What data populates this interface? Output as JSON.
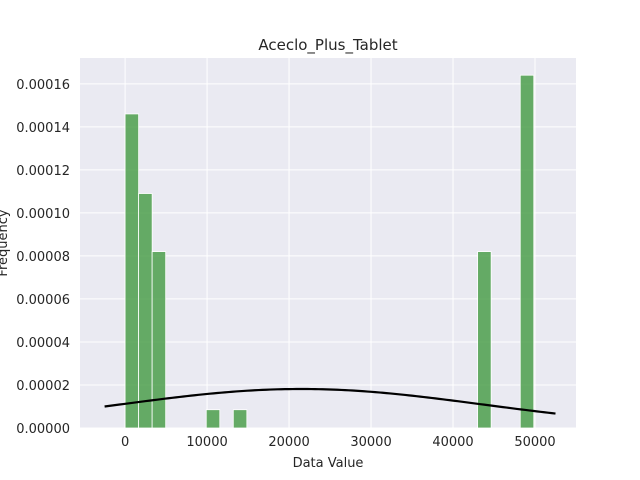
{
  "chart_data": {
    "type": "bar",
    "title": "Aceclo_Plus_Tablet",
    "xlabel": "Data Value",
    "ylabel": "Frequency",
    "xlim": [
      -5500,
      55000
    ],
    "ylim": [
      0,
      0.000172
    ],
    "grid": true,
    "x_ticks": [
      0,
      10000,
      20000,
      30000,
      40000,
      50000
    ],
    "y_ticks": [
      0,
      2e-05,
      4e-05,
      6e-05,
      8e-05,
      0.0001,
      0.00012,
      0.00014,
      0.00016
    ],
    "x_tick_labels": [
      "0",
      "10000",
      "20000",
      "30000",
      "40000",
      "50000"
    ],
    "y_tick_labels": [
      "0.00000",
      "0.00002",
      "0.00004",
      "0.00006",
      "0.00008",
      "0.00010",
      "0.00012",
      "0.00014",
      "0.00016"
    ],
    "bin_width": 1650,
    "bins": [
      {
        "start": 0,
        "value": 0.000146
      },
      {
        "start": 1650,
        "value": 0.000109
      },
      {
        "start": 3300,
        "value": 8.2e-05
      },
      {
        "start": 9900,
        "value": 8.5e-06
      },
      {
        "start": 13200,
        "value": 8.5e-06
      },
      {
        "start": 43000,
        "value": 8.2e-05
      },
      {
        "start": 48200,
        "value": 0.000164
      }
    ],
    "curve": {
      "type": "normal-pdf",
      "mean": 21500,
      "std": 22000,
      "x_range": [
        -2500,
        52500
      ]
    },
    "colors": {
      "plot_background": "#eaeaf2",
      "grid": "#ffffff",
      "bar": "#4c9f4c",
      "curve": "#000000"
    }
  }
}
